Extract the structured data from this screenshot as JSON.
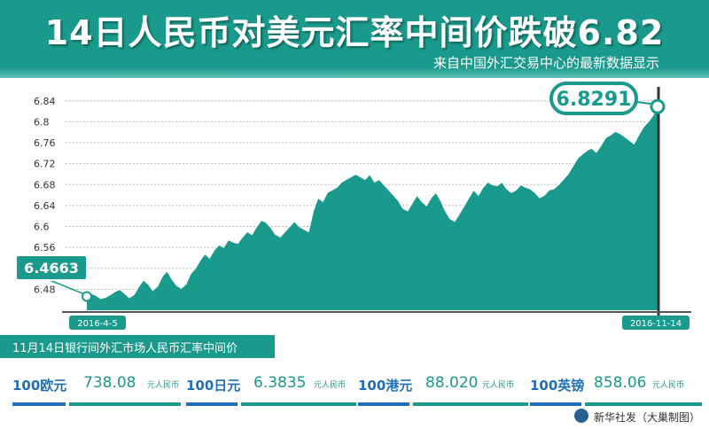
{
  "title": "14日人民币对美元汇率中间价跌破6.82",
  "subtitle": "来自中国外汇交易中心的最新数据显示",
  "chart_data": {
    "type": "area",
    "yticks": [
      "6.84",
      "6.8",
      "6.76",
      "6.72",
      "6.68",
      "6.64",
      "6.6",
      "6.56",
      "6.52",
      "6.48"
    ],
    "ylim": [
      6.44,
      6.86
    ],
    "start_label": "2016-4-5",
    "end_label": "2016-11-14",
    "start_value": "6.4663",
    "end_value": "6.8291",
    "grid": true,
    "colors": {
      "area": "#1a9a8c",
      "line": "#ffffff",
      "callout": "#1a9a8c"
    },
    "y": [
      6.4663,
      6.472,
      6.468,
      6.462,
      6.465,
      6.47,
      6.476,
      6.48,
      6.472,
      6.464,
      6.47,
      6.485,
      6.498,
      6.49,
      6.478,
      6.486,
      6.505,
      6.515,
      6.5,
      6.488,
      6.482,
      6.49,
      6.51,
      6.52,
      6.535,
      6.548,
      6.54,
      6.555,
      6.565,
      6.56,
      6.575,
      6.57,
      6.568,
      6.58,
      6.59,
      6.585,
      6.6,
      6.612,
      6.608,
      6.598,
      6.585,
      6.58,
      6.59,
      6.6,
      6.61,
      6.6,
      6.595,
      6.59,
      6.63,
      6.655,
      6.648,
      6.665,
      6.67,
      6.675,
      6.685,
      6.69,
      6.695,
      6.7,
      6.695,
      6.69,
      6.7,
      6.685,
      6.69,
      6.68,
      6.67,
      6.66,
      6.65,
      6.635,
      6.63,
      6.645,
      6.66,
      6.648,
      6.64,
      6.655,
      6.665,
      6.65,
      6.63,
      6.615,
      6.61,
      6.625,
      6.64,
      6.655,
      6.67,
      6.66,
      6.675,
      6.685,
      6.68,
      6.678,
      6.685,
      6.672,
      6.665,
      6.67,
      6.68,
      6.675,
      6.672,
      6.665,
      6.655,
      6.66,
      6.67,
      6.672,
      6.68,
      6.69,
      6.7,
      6.715,
      6.73,
      6.738,
      6.745,
      6.75,
      6.742,
      6.755,
      6.77,
      6.775,
      6.782,
      6.778,
      6.772,
      6.765,
      6.758,
      6.775,
      6.79,
      6.8,
      6.812,
      6.8291
    ]
  },
  "section_title": "11月14日银行间外汇市场人民币汇率中间价",
  "rates": [
    {
      "unit": "100欧元",
      "value": "738.08",
      "suffix": "元人民币"
    },
    {
      "unit": "100日元",
      "value": "6.3835",
      "suffix": "元人民币"
    },
    {
      "unit": "100港元",
      "value": "88.020",
      "suffix": "元人民币"
    },
    {
      "unit": "100英镑",
      "value": "858.06",
      "suffix": "元人民币"
    }
  ],
  "source": "新华社发（大巢制图）"
}
